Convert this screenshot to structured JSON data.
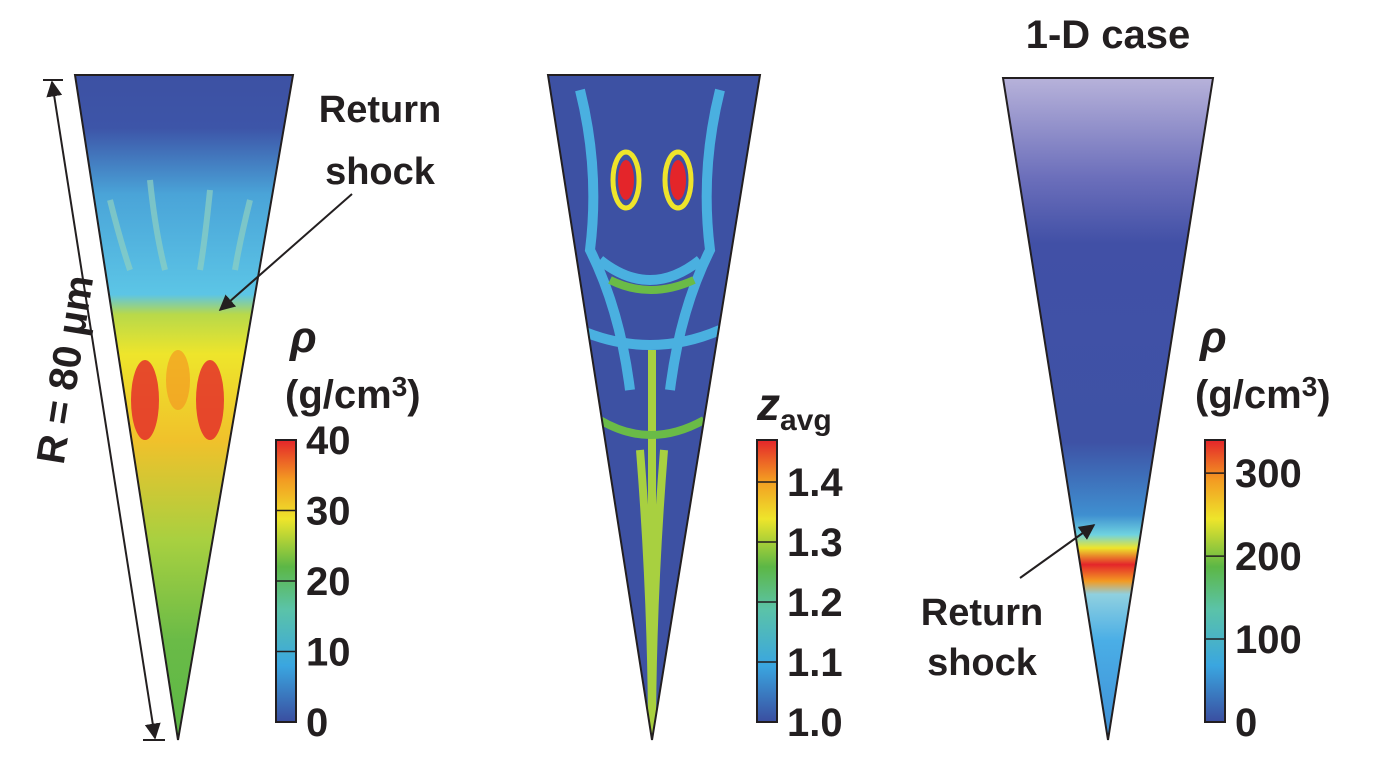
{
  "panels": [
    {
      "annotation": [
        "Return",
        "shock"
      ],
      "scale_label": "R = 80 μm",
      "colorbar": {
        "symbol": "ρ",
        "unit_main": "(g/cm",
        "unit_sup": "3",
        "unit_end": ")",
        "lim": [
          0,
          40
        ],
        "ticks": [
          0,
          10,
          20,
          30,
          40
        ]
      }
    },
    {
      "colorbar": {
        "symbol": "z",
        "symbol_sub": "avg",
        "lim": [
          1,
          1.47
        ],
        "ticks": [
          {
            "value": 1,
            "label": "1.0"
          },
          1.1,
          1.2,
          1.3,
          1.4
        ]
      }
    },
    {
      "title": "1-D case",
      "annotation": [
        "Return",
        "shock"
      ],
      "colorbar": {
        "symbol": "ρ",
        "unit_main": "(g/cm",
        "unit_sup": "3",
        "unit_end": ")",
        "lim": [
          0,
          340
        ],
        "ticks": [
          0,
          100,
          200,
          300
        ]
      }
    }
  ]
}
